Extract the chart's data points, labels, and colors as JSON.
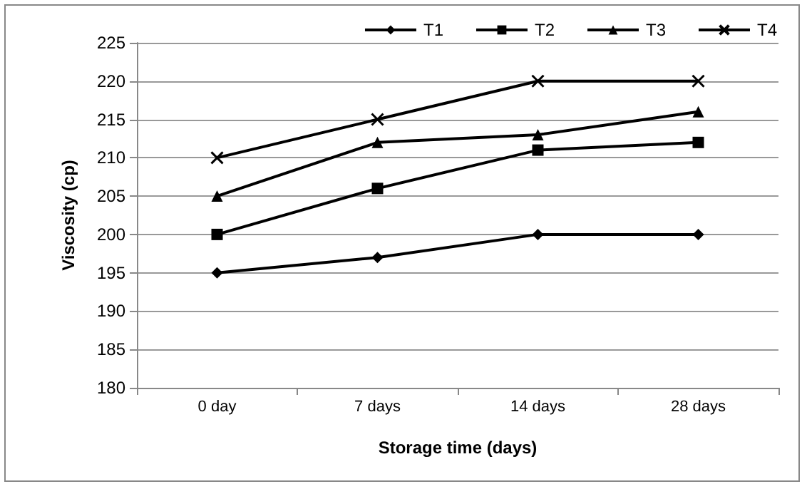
{
  "chart_data": {
    "type": "line",
    "xlabel": "Storage time (days)",
    "ylabel": "Viscosity (cp)",
    "categories": [
      "0 day",
      "7 days",
      "14 days",
      "28 days"
    ],
    "series": [
      {
        "name": "T1",
        "color": "#000000",
        "marker": "diamond",
        "values": [
          195,
          197,
          200,
          200
        ]
      },
      {
        "name": "T2",
        "color": "#000000",
        "marker": "square",
        "values": [
          200,
          206,
          211,
          212
        ]
      },
      {
        "name": "T3",
        "color": "#000000",
        "marker": "triangle",
        "values": [
          205,
          212,
          213,
          216
        ]
      },
      {
        "name": "T4",
        "color": "#000000",
        "marker": "cross",
        "values": [
          210,
          215,
          220,
          220
        ]
      }
    ],
    "ylim": [
      180,
      225
    ],
    "yticks": [
      180,
      185,
      190,
      195,
      200,
      205,
      210,
      215,
      220,
      225
    ],
    "grid": "y",
    "legend": "top right"
  }
}
